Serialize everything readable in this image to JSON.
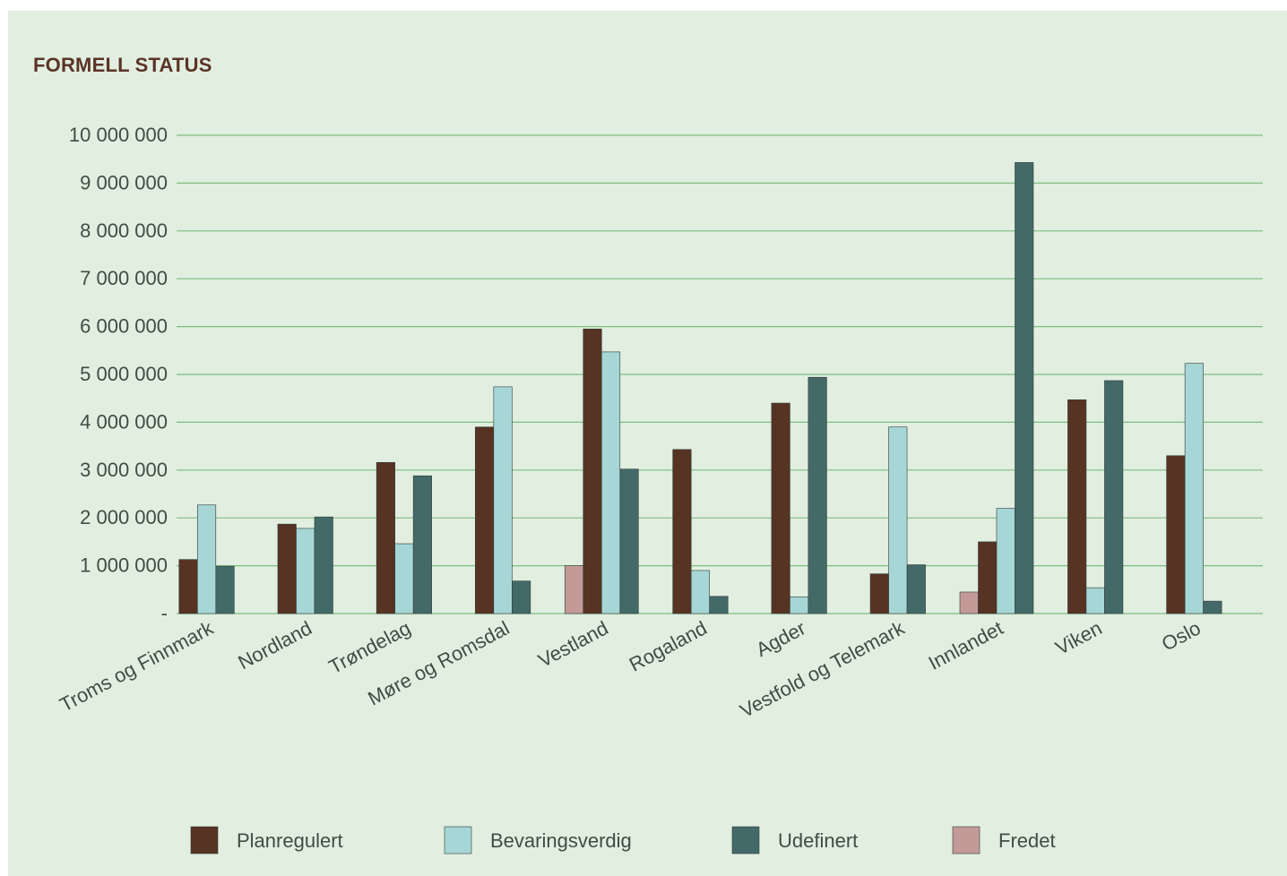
{
  "chart_data": {
    "type": "bar",
    "title": "FORMELL STATUS",
    "xlabel": "",
    "ylabel": "",
    "ylim": [
      0,
      10000000
    ],
    "yticks": [
      0,
      1000000,
      2000000,
      3000000,
      4000000,
      5000000,
      6000000,
      7000000,
      8000000,
      9000000,
      10000000
    ],
    "ytick_labels": [
      "-",
      "1 000 000",
      "2 000 000",
      "3 000 000",
      "4 000 000",
      "5 000 000",
      "6 000 000",
      "7 000 000",
      "8 000 000",
      "9 000 000",
      "10 000 000"
    ],
    "categories": [
      "Troms og Finnmark",
      "Nordland",
      "Trøndelag",
      "Møre og Romsdal",
      "Vestland",
      "Rogaland",
      "Agder",
      "Vestfold og Telemark",
      "Innlandet",
      "Viken",
      "Oslo"
    ],
    "series": [
      {
        "name": "Fredet",
        "color": "#c49a98",
        "values": [
          0,
          0,
          0,
          0,
          1000000,
          0,
          0,
          0,
          450000,
          0,
          0
        ]
      },
      {
        "name": "Planregulert",
        "color": "#573324",
        "values": [
          1130000,
          1870000,
          3160000,
          3900000,
          5950000,
          3430000,
          4400000,
          830000,
          1500000,
          4470000,
          3300000
        ]
      },
      {
        "name": "Bevaringsverdig",
        "color": "#a7d6d6",
        "values": [
          2270000,
          1780000,
          1460000,
          4740000,
          5470000,
          900000,
          350000,
          3900000,
          2200000,
          540000,
          5230000
        ]
      },
      {
        "name": "Udefinert",
        "color": "#436a69",
        "values": [
          990000,
          2020000,
          2880000,
          680000,
          3020000,
          360000,
          4940000,
          1020000,
          9430000,
          4870000,
          260000
        ]
      }
    ],
    "legend": {
      "position": "bottom",
      "entries": [
        {
          "label": "Planregulert",
          "color": "#573324"
        },
        {
          "label": "Bevaringsverdig",
          "color": "#a7d6d6"
        },
        {
          "label": "Udefinert",
          "color": "#436a69"
        },
        {
          "label": "Fredet",
          "color": "#c49a98"
        }
      ]
    },
    "grid": true,
    "gridColor": "#7fbf7f",
    "background": "#e1eee0"
  }
}
